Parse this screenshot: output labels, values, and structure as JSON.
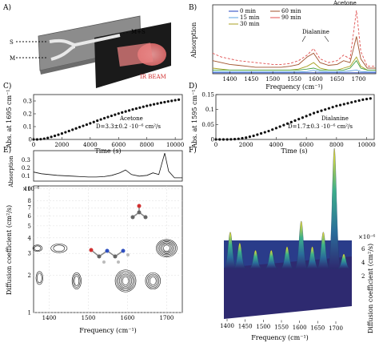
{
  "panels": {
    "A": {
      "label": "A)",
      "texts": {
        "s": "S",
        "m": "M",
        "ms": "M+S",
        "beam": "IR BEAM"
      }
    },
    "B": {
      "label": "B)",
      "ylabel": "Absorption",
      "xlabel": "Frequency (cm⁻¹)",
      "xlim": [
        1360,
        1740
      ],
      "ylim": [
        0,
        0.37
      ],
      "xticks": [
        "1400",
        "1450",
        "1500",
        "1550",
        "1600",
        "1650",
        "1700"
      ],
      "annotations": {
        "acetone": "Acetone",
        "dialanine": "Dialanine"
      },
      "series": [
        {
          "name": "0 min",
          "color": "#1f3fbf"
        },
        {
          "name": "15 min",
          "color": "#5aa0e0"
        },
        {
          "name": "30 min",
          "color": "#a8a020"
        },
        {
          "name": "60 min",
          "color": "#a0522d"
        },
        {
          "name": "90 min",
          "color": "#e05050"
        }
      ],
      "color_extra": "#40a040"
    },
    "C": {
      "label": "C)",
      "ylabel": "Abs. at 1695 cm⁻¹",
      "xlabel": "Time (s)",
      "xlim": [
        0,
        10500
      ],
      "ylim": [
        0,
        0.35
      ],
      "xticks": [
        "0",
        "2000",
        "4000",
        "6000",
        "8000",
        "10000"
      ],
      "yticks": [
        "0",
        "0.1",
        "0.2",
        "0.3"
      ],
      "legend_name": "Acetone",
      "legend_value": "D=3.3±0.2 ·10⁻⁶ cm²/s"
    },
    "D": {
      "label": "D)",
      "ylabel": "Abs. at 1595 cm⁻¹",
      "xlabel": "Time (s)",
      "xlim": [
        0,
        10500
      ],
      "ylim": [
        0,
        0.15
      ],
      "xticks": [
        "0",
        "2000",
        "4000",
        "6000",
        "8000",
        "10000"
      ],
      "yticks": [
        "0",
        "0.05",
        "0.1",
        "0.15"
      ],
      "legend_name": "Dialanine",
      "legend_value": "D=1.7±0.3 ·10⁻⁶ cm²/s"
    },
    "E": {
      "label": "E)",
      "top_ylabel": "Absorption",
      "top_yticks": [
        "0.1",
        "0.2",
        "0.3"
      ],
      "ylabel": "Diffusion coefficient (cm²/s)",
      "exponent": "×10⁻⁶",
      "yticks": [
        "1",
        "2",
        "3",
        "4",
        "5",
        "6",
        "7",
        "8",
        "10"
      ],
      "xticks": [
        "1400",
        "1500",
        "1600",
        "1700"
      ],
      "xlabel": "Frequency (cm⁻¹)"
    },
    "F": {
      "label": "F)",
      "xticks": [
        "1400",
        "1450",
        "1500",
        "1550",
        "1600",
        "1650",
        "1700"
      ],
      "xlabel": "Frequency (cm⁻¹)",
      "ylabel": "Diffusion coefficient (cm²/s)",
      "exponent": "×10⁻⁶",
      "yticks": [
        "2",
        "4",
        "6"
      ]
    }
  },
  "chart_data": [
    {
      "type": "line",
      "panel": "B",
      "xlabel": "Frequency (cm⁻¹)",
      "ylabel": "Absorption",
      "x": [
        1360,
        1380,
        1400,
        1420,
        1440,
        1460,
        1480,
        1500,
        1520,
        1540,
        1560,
        1580,
        1595,
        1610,
        1630,
        1650,
        1665,
        1680,
        1695,
        1705,
        1720,
        1740
      ],
      "series": [
        {
          "name": "0 min",
          "values": [
            0.005,
            0.005,
            0.005,
            0.005,
            0.005,
            0.005,
            0.005,
            0.005,
            0.005,
            0.005,
            0.005,
            0.005,
            0.005,
            0.005,
            0.005,
            0.005,
            0.005,
            0.005,
            0.005,
            0.005,
            0.005,
            0.005
          ]
        },
        {
          "name": "15 min",
          "values": [
            0.01,
            0.01,
            0.01,
            0.01,
            0.01,
            0.01,
            0.01,
            0.01,
            0.01,
            0.01,
            0.01,
            0.012,
            0.018,
            0.012,
            0.01,
            0.01,
            0.012,
            0.015,
            0.02,
            0.012,
            0.01,
            0.01
          ]
        },
        {
          "name": "30 min",
          "values": [
            0.03,
            0.025,
            0.02,
            0.02,
            0.02,
            0.02,
            0.02,
            0.02,
            0.02,
            0.02,
            0.025,
            0.04,
            0.06,
            0.03,
            0.02,
            0.02,
            0.03,
            0.04,
            0.09,
            0.04,
            0.02,
            0.02
          ]
        },
        {
          "name": "60 min",
          "values": [
            0.07,
            0.06,
            0.05,
            0.045,
            0.04,
            0.035,
            0.035,
            0.035,
            0.035,
            0.04,
            0.05,
            0.09,
            0.11,
            0.06,
            0.045,
            0.05,
            0.07,
            0.06,
            0.2,
            0.08,
            0.03,
            0.03
          ]
        },
        {
          "name": "90 min",
          "values": [
            0.11,
            0.09,
            0.08,
            0.07,
            0.065,
            0.06,
            0.055,
            0.05,
            0.05,
            0.055,
            0.07,
            0.1,
            0.135,
            0.08,
            0.06,
            0.07,
            0.1,
            0.08,
            0.34,
            0.12,
            0.04,
            0.04
          ]
        },
        {
          "name": "",
          "values": [
            0.02,
            0.02,
            0.02,
            0.02,
            0.02,
            0.02,
            0.02,
            0.02,
            0.02,
            0.02,
            0.02,
            0.025,
            0.03,
            0.02,
            0.02,
            0.02,
            0.02,
            0.03,
            0.07,
            0.03,
            0.02,
            0.02
          ]
        }
      ]
    },
    {
      "type": "scatter",
      "panel": "C",
      "xlabel": "Time (s)",
      "ylabel": "Abs. at 1695 cm⁻¹",
      "x": [
        0,
        250,
        500,
        750,
        1000,
        1250,
        1500,
        1750,
        2000,
        2250,
        2500,
        2750,
        3000,
        3250,
        3500,
        3750,
        4000,
        4250,
        4500,
        4750,
        5000,
        5250,
        5500,
        5750,
        6000,
        6250,
        6500,
        6750,
        7000,
        7250,
        7500,
        7750,
        8000,
        8250,
        8500,
        8750,
        9000,
        9250,
        9500,
        9750,
        10000,
        10250
      ],
      "values": [
        0.0,
        0.0,
        0.002,
        0.006,
        0.012,
        0.02,
        0.028,
        0.037,
        0.046,
        0.056,
        0.066,
        0.076,
        0.086,
        0.096,
        0.106,
        0.116,
        0.126,
        0.136,
        0.146,
        0.156,
        0.166,
        0.175,
        0.184,
        0.193,
        0.202,
        0.21,
        0.218,
        0.226,
        0.234,
        0.241,
        0.248,
        0.255,
        0.262,
        0.268,
        0.274,
        0.28,
        0.286,
        0.291,
        0.296,
        0.301,
        0.306,
        0.31
      ]
    },
    {
      "type": "scatter",
      "panel": "D",
      "xlabel": "Time (s)",
      "ylabel": "Abs. at 1595 cm⁻¹",
      "x": [
        0,
        250,
        500,
        750,
        1000,
        1250,
        1500,
        1750,
        2000,
        2250,
        2500,
        2750,
        3000,
        3250,
        3500,
        3750,
        4000,
        4250,
        4500,
        4750,
        5000,
        5250,
        5500,
        5750,
        6000,
        6250,
        6500,
        6750,
        7000,
        7250,
        7500,
        7750,
        8000,
        8250,
        8500,
        8750,
        9000,
        9250,
        9500,
        9750,
        10000,
        10250
      ],
      "values": [
        0.0,
        0.0,
        0.0,
        0.0,
        0.0005,
        0.001,
        0.002,
        0.004,
        0.006,
        0.009,
        0.012,
        0.016,
        0.02,
        0.024,
        0.028,
        0.033,
        0.038,
        0.043,
        0.048,
        0.053,
        0.058,
        0.063,
        0.068,
        0.073,
        0.078,
        0.083,
        0.088,
        0.092,
        0.096,
        0.1,
        0.104,
        0.108,
        0.112,
        0.115,
        0.118,
        0.121,
        0.124,
        0.127,
        0.13,
        0.133,
        0.135,
        0.137
      ]
    },
    {
      "type": "line",
      "panel": "E-top",
      "ylabel": "Absorption",
      "x": [
        1360,
        1380,
        1400,
        1420,
        1440,
        1460,
        1480,
        1500,
        1520,
        1540,
        1560,
        1580,
        1595,
        1610,
        1630,
        1650,
        1665,
        1680,
        1695,
        1705,
        1720,
        1740
      ],
      "values": [
        0.11,
        0.09,
        0.08,
        0.07,
        0.065,
        0.06,
        0.055,
        0.05,
        0.05,
        0.055,
        0.07,
        0.1,
        0.135,
        0.08,
        0.06,
        0.07,
        0.1,
        0.08,
        0.34,
        0.12,
        0.04,
        0.04
      ]
    },
    {
      "type": "scatter",
      "panel": "E-contour",
      "xlabel": "Frequency (cm⁻¹)",
      "ylabel": "Diffusion coefficient (cm²/s)",
      "x": [
        1370,
        1425,
        1375,
        1470,
        1595,
        1665,
        1700
      ],
      "values": [
        3.3,
        3.3,
        1.9,
        1.8,
        1.8,
        1.8,
        3.3
      ]
    },
    {
      "type": "area",
      "panel": "F",
      "xlabel": "Frequency (cm⁻¹)",
      "ylabel": "Diffusion coefficient (cm²/s)",
      "x": [
        1370,
        1400,
        1450,
        1500,
        1550,
        1595,
        1630,
        1665,
        1700,
        1730
      ],
      "values": [
        0.1,
        0.07,
        0.05,
        0.05,
        0.06,
        0.13,
        0.06,
        0.1,
        0.33,
        0.04
      ]
    }
  ]
}
